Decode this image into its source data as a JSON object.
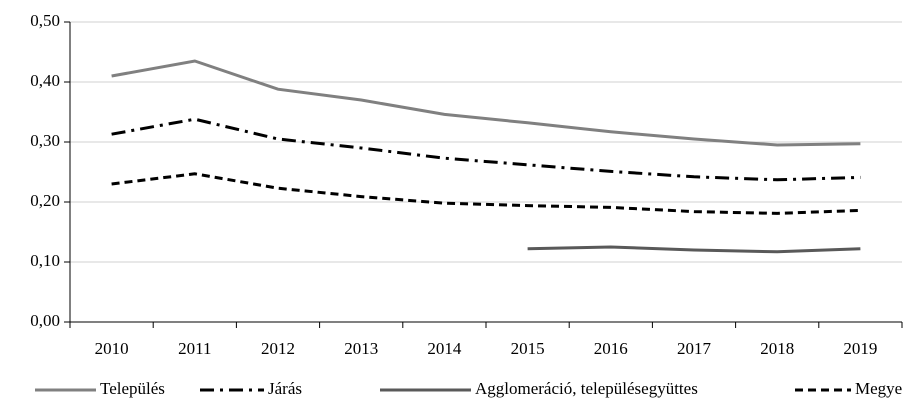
{
  "chart_data": {
    "type": "line",
    "categories": [
      "2010",
      "2011",
      "2012",
      "2013",
      "2014",
      "2015",
      "2016",
      "2017",
      "2018",
      "2019"
    ],
    "series": [
      {
        "name": "Település",
        "color": "#808080",
        "dash": "solid",
        "values": [
          0.41,
          0.435,
          0.388,
          0.37,
          0.346,
          0.332,
          0.317,
          0.305,
          0.295,
          0.297
        ]
      },
      {
        "name": "Járás",
        "color": "#000000",
        "dash": "dashdot",
        "values": [
          0.313,
          0.338,
          0.305,
          0.29,
          0.273,
          0.262,
          0.251,
          0.242,
          0.237,
          0.241
        ]
      },
      {
        "name": "Agglomeráció, településegyüttes",
        "color": "#595959",
        "dash": "solid",
        "values": [
          null,
          null,
          null,
          null,
          null,
          0.122,
          0.125,
          0.12,
          0.117,
          0.122
        ]
      },
      {
        "name": "Megye",
        "color": "#000000",
        "dash": "dashed",
        "values": [
          0.23,
          0.247,
          0.223,
          0.209,
          0.198,
          0.194,
          0.191,
          0.184,
          0.181,
          0.186
        ]
      }
    ],
    "ylim": [
      0,
      0.5
    ],
    "yticks": [
      {
        "value": 0,
        "label": "0,00"
      },
      {
        "value": 0.1,
        "label": "0,10"
      },
      {
        "value": 0.2,
        "label": "0,20"
      },
      {
        "value": 0.3,
        "label": "0,30"
      },
      {
        "value": 0.4,
        "label": "0,40"
      },
      {
        "value": 0.5,
        "label": "0,50"
      }
    ],
    "grid": true,
    "legend": "bottom"
  }
}
